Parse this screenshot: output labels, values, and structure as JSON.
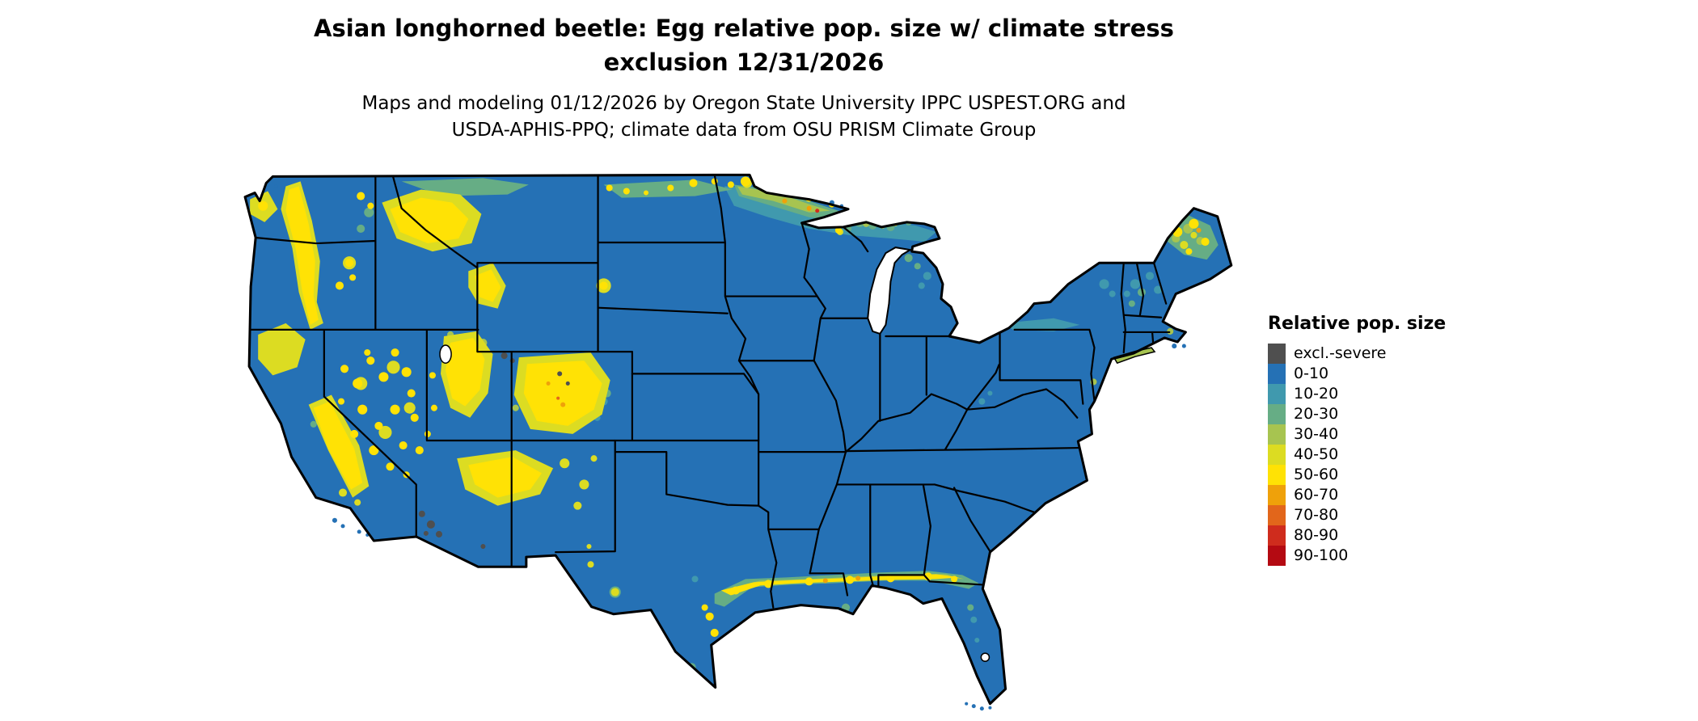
{
  "title": {
    "line1": "Asian longhorned beetle: Egg relative pop. size w/ climate stress",
    "line2": "exclusion 12/31/2026"
  },
  "subtitle": {
    "line1": "Maps and modeling 01/12/2026 by Oregon State University IPPC USPEST.ORG and",
    "line2": "USDA-APHIS-PPQ; climate data from OSU PRISM Climate Group"
  },
  "legend": {
    "title": "Relative pop. size",
    "items": [
      {
        "label": "excl.-severe",
        "color": "#4f4f4f"
      },
      {
        "label": "0-10",
        "color": "#2571b5"
      },
      {
        "label": "10-20",
        "color": "#4099ae"
      },
      {
        "label": "20-30",
        "color": "#66ad85"
      },
      {
        "label": "30-40",
        "color": "#a7c450"
      },
      {
        "label": "40-50",
        "color": "#dcdc22"
      },
      {
        "label": "50-60",
        "color": "#ffe205"
      },
      {
        "label": "60-70",
        "color": "#efa10a"
      },
      {
        "label": "70-80",
        "color": "#e2661b"
      },
      {
        "label": "80-90",
        "color": "#cf2c1d"
      },
      {
        "label": "90-100",
        "color": "#b40a12"
      }
    ]
  },
  "map": {
    "subject": "Contiguous United States choropleth of egg relative population size",
    "border_color": "#000000",
    "water_color": "#ffffff"
  }
}
